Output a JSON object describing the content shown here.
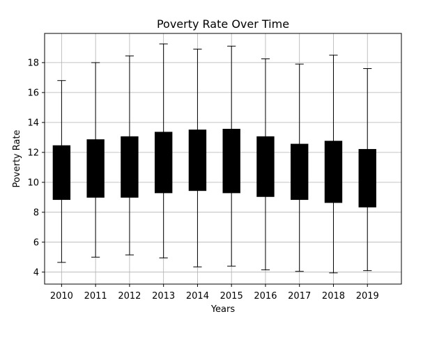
{
  "chart_data": {
    "type": "box",
    "title": "Poverty Rate Over Time",
    "xlabel": "Years",
    "ylabel": "Poverty Rate",
    "categories": [
      "2010",
      "2011",
      "2012",
      "2013",
      "2014",
      "2015",
      "2016",
      "2017",
      "2018",
      "2019"
    ],
    "boxes": [
      {
        "category": "2010",
        "whisker_low": 4.65,
        "q1": 8.85,
        "q3": 12.45,
        "whisker_high": 16.8
      },
      {
        "category": "2011",
        "whisker_low": 5.0,
        "q1": 9.0,
        "q3": 12.85,
        "whisker_high": 18.0
      },
      {
        "category": "2012",
        "whisker_low": 5.15,
        "q1": 9.0,
        "q3": 13.05,
        "whisker_high": 18.45
      },
      {
        "category": "2013",
        "whisker_low": 4.95,
        "q1": 9.3,
        "q3": 13.35,
        "whisker_high": 19.25
      },
      {
        "category": "2014",
        "whisker_low": 4.35,
        "q1": 9.45,
        "q3": 13.5,
        "whisker_high": 18.9
      },
      {
        "category": "2015",
        "whisker_low": 4.4,
        "q1": 9.3,
        "q3": 13.55,
        "whisker_high": 19.1
      },
      {
        "category": "2016",
        "whisker_low": 4.15,
        "q1": 9.05,
        "q3": 13.05,
        "whisker_high": 18.25
      },
      {
        "category": "2017",
        "whisker_low": 4.05,
        "q1": 8.85,
        "q3": 12.55,
        "whisker_high": 17.9
      },
      {
        "category": "2018",
        "whisker_low": 3.95,
        "q1": 8.65,
        "q3": 12.75,
        "whisker_high": 18.5
      },
      {
        "category": "2019",
        "whisker_low": 4.1,
        "q1": 8.35,
        "q3": 12.2,
        "whisker_high": 17.6
      }
    ],
    "ylim": [
      3.2,
      19.95
    ],
    "yticks": [
      4,
      6,
      8,
      10,
      12,
      14,
      16,
      18
    ],
    "grid": true,
    "box_color": "#000000",
    "grid_color": "#b0b0b0"
  }
}
